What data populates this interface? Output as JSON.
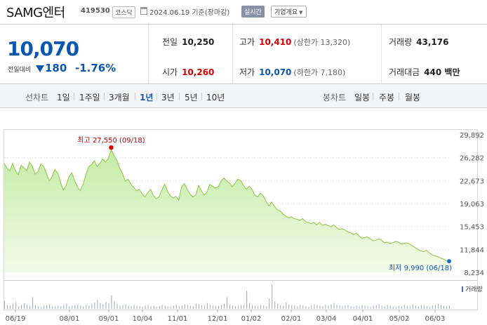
{
  "header": {
    "stock_name": "SAMG엔터",
    "stock_code": "419530",
    "market": "코스닥",
    "date_text": "2024.06.19 기준(장마감)",
    "realtime_label": "실시간",
    "company_overview_label": "기업개요"
  },
  "summary": {
    "current_price": "10,070",
    "change_label": "전일대비",
    "change_value": "180",
    "change_pct": "-1.76%",
    "prev_close_label": "전일",
    "prev_close": "10,250",
    "high_label": "고가",
    "high": "10,410",
    "upper_limit": "(상한가 13,320)",
    "volume_label": "거래량",
    "volume": "43,176",
    "open_label": "시가",
    "open": "10,260",
    "low_label": "저가",
    "low": "10,070",
    "lower_limit": "(하한가 7,180)",
    "trade_value_label": "거래대금",
    "trade_value": "440 백만"
  },
  "range_bar": {
    "line_chart_label": "선차트",
    "ranges": [
      "1일",
      "1주일",
      "3개월",
      "1년",
      "3년",
      "5년",
      "10년"
    ],
    "selected": "1년",
    "candle_chart_label": "봉차트",
    "candle_ranges": [
      "일봉",
      "주봉",
      "월봉"
    ]
  },
  "colors": {
    "up": "#d60000",
    "down": "#0a56b3",
    "line": "#8cc63f",
    "fill_top": "#c4eba6",
    "fill_bottom": "#f3fbea"
  },
  "chart_data": {
    "type": "area",
    "x_ticks": [
      "06/19",
      "08/01",
      "09/01",
      "10/04",
      "11/01",
      "12/01",
      "01/02",
      "02/01",
      "03/04",
      "04/01",
      "05/02",
      "06/03"
    ],
    "y_ticks": [
      "29,892",
      "26,282",
      "22,673",
      "19,063",
      "15,453",
      "11,844",
      "8,234"
    ],
    "ylim": [
      8234,
      29892
    ],
    "high_annotation": "최고 27,550 (09/18)",
    "low_annotation": "최저 9,990 (06/18)",
    "volume_label": "거래량",
    "series": [
      {
        "values": [
          25400,
          24600,
          24200,
          25400,
          24200,
          23600,
          25100,
          24700,
          24200,
          25600,
          24900,
          23700,
          24100,
          25300,
          24900,
          23800,
          22600,
          23300,
          24400,
          23900,
          22400,
          21200,
          21900,
          23300,
          23900,
          22700,
          21700,
          21100,
          22100,
          23600,
          24900,
          25200,
          25800,
          24900,
          25400,
          26100,
          25600,
          26200,
          27550,
          26600,
          25900,
          24700,
          23800,
          22600,
          22900,
          22100,
          21600,
          21100,
          21300,
          20600,
          20100,
          20800,
          21300,
          20300,
          19800,
          20100,
          21200,
          22100,
          21000,
          20300,
          19900,
          20200,
          19600,
          21700,
          22200,
          21300,
          20600,
          20100,
          20400,
          21900,
          21100,
          20400,
          20800,
          22100,
          21800,
          21500,
          21700,
          22600,
          23100,
          22600,
          22300,
          21700,
          22300,
          22900,
          22700,
          21900,
          21300,
          21800,
          21300,
          20400,
          20100,
          20700,
          20300,
          19400,
          18700,
          19300,
          18600,
          18100,
          17900,
          17400,
          17100,
          16800,
          17000,
          16700,
          16600,
          16400,
          16700,
          16200,
          16100,
          15900,
          16100,
          15700,
          16100,
          15600,
          15800,
          15600,
          15400,
          15700,
          15300,
          15000,
          15100,
          14900,
          14600,
          14500,
          14200,
          14400,
          14000,
          13600,
          13700,
          13800,
          13500,
          13200,
          13300,
          13500,
          13300,
          12900,
          13000,
          12800,
          12900,
          13100,
          13000,
          12700,
          12800,
          12900,
          12700,
          12400,
          12100,
          11800,
          11600,
          11500,
          11700,
          11300,
          11000,
          10800,
          10700,
          10500,
          10300,
          10100,
          9990
        ]
      }
    ],
    "volume": [
      12,
      6,
      5,
      8,
      10,
      4,
      6,
      9,
      7,
      5,
      18,
      6,
      4,
      3,
      5,
      6,
      7,
      4,
      3,
      5,
      4,
      6,
      8,
      4,
      5,
      6,
      7,
      5,
      4,
      6,
      5,
      8,
      10,
      14,
      9,
      7,
      11,
      9,
      21,
      12,
      8,
      5,
      6,
      7,
      5,
      4,
      6,
      5,
      4,
      3,
      5,
      6,
      4,
      5,
      3,
      4,
      6,
      5,
      4,
      3,
      5,
      6,
      4,
      5,
      7,
      6,
      5,
      4,
      8,
      7,
      6,
      5,
      9,
      6,
      5,
      4,
      5,
      6,
      8,
      18,
      6,
      5,
      4,
      5,
      6,
      7,
      28,
      9,
      6,
      5,
      4,
      6,
      5,
      4,
      16,
      38,
      12,
      8,
      6,
      5,
      10,
      7,
      6,
      5,
      4,
      6,
      5,
      4,
      3,
      5,
      7,
      6,
      5,
      4,
      6,
      5,
      7,
      9,
      6,
      5,
      4,
      5,
      6,
      4,
      3,
      5,
      4,
      6,
      5,
      4,
      3,
      5,
      6,
      7,
      5,
      4,
      6,
      5,
      4,
      3,
      5,
      4,
      6,
      5,
      4,
      7,
      5,
      4,
      6,
      5,
      4,
      3,
      5,
      6,
      8,
      6,
      5,
      4,
      5
    ]
  }
}
